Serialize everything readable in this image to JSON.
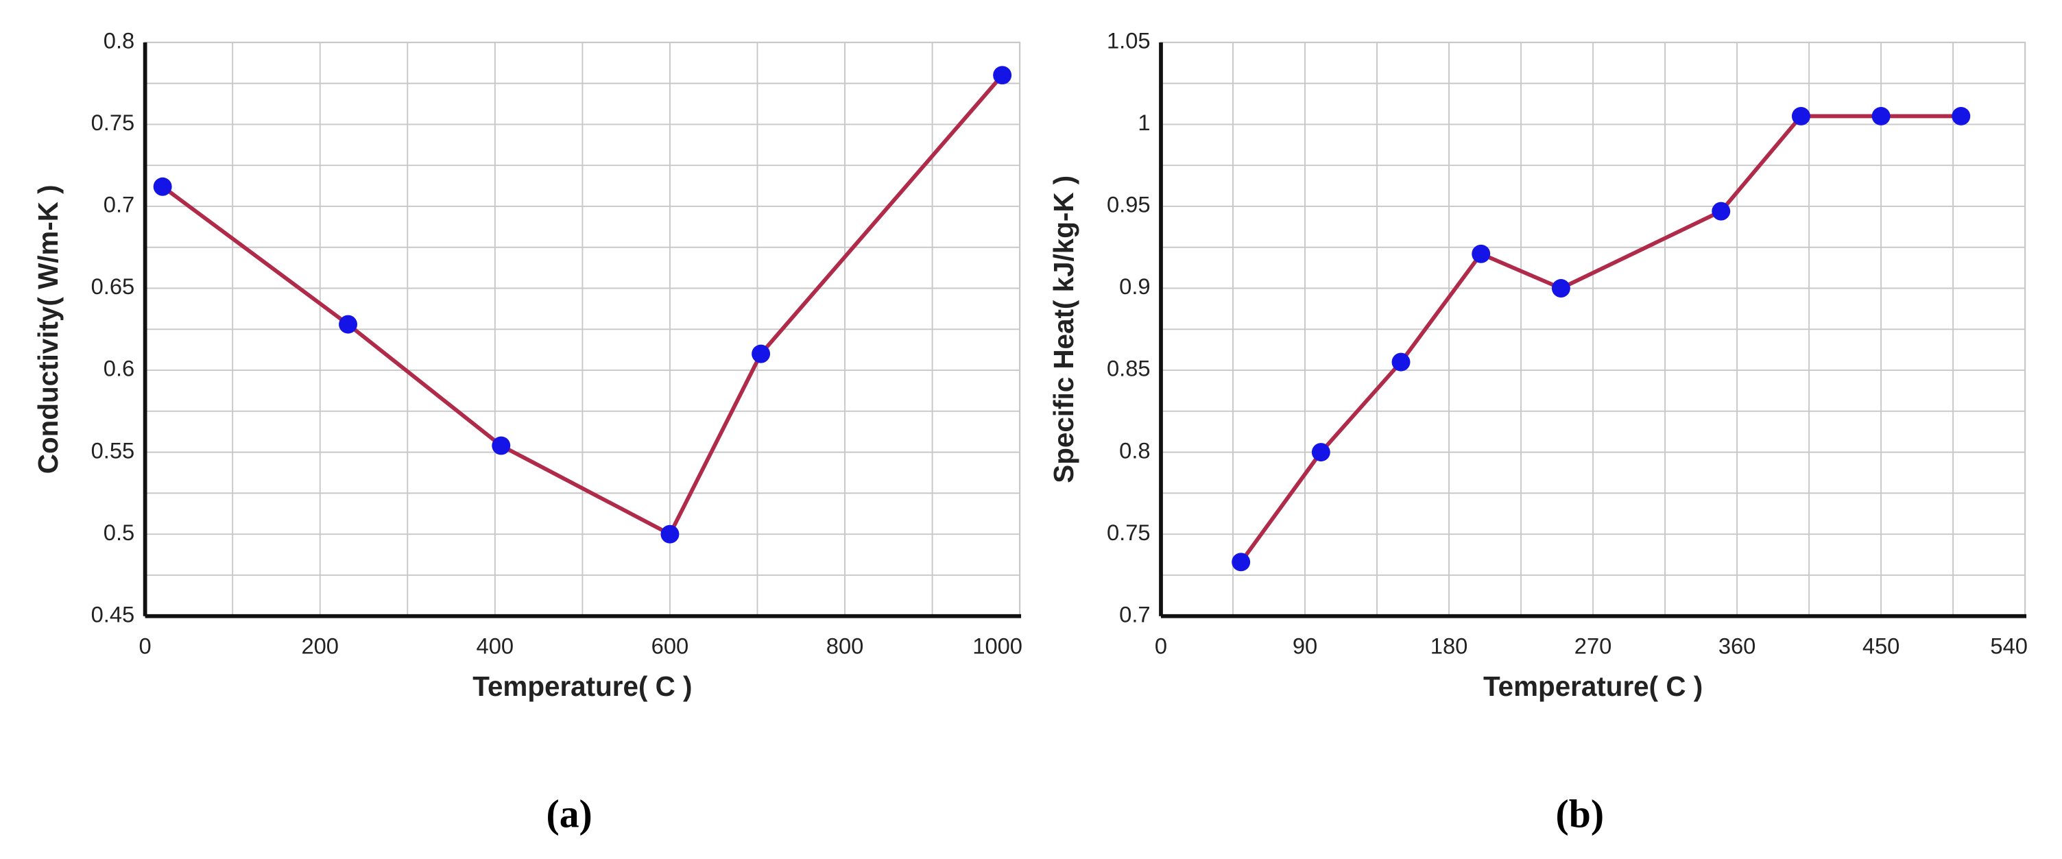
{
  "chart_data": [
    {
      "type": "line",
      "caption": "(a)",
      "x_label": "Temperature( C )",
      "y_label": "Conductivity( W/m-K )",
      "x": [
        20,
        232,
        407,
        600,
        704,
        980
      ],
      "series": [
        {
          "color": "#b02a4a",
          "marker_color": "#1414e6",
          "values": [
            0.712,
            0.628,
            0.554,
            0.5,
            0.61,
            0.78
          ]
        }
      ],
      "xlim": [
        0,
        1000
      ],
      "xticks": [
        0,
        200,
        400,
        600,
        800,
        1000
      ],
      "ylim": [
        0.45,
        0.8
      ],
      "yticks": [
        0.45,
        0.5,
        0.55,
        0.6,
        0.65,
        0.7,
        0.75,
        0.8
      ],
      "grid": true,
      "minor_grid": true
    },
    {
      "type": "line",
      "caption": "(b)",
      "x_label": "Temperature( C )",
      "y_label": "Specific Heat( kJ/kg-K )",
      "x": [
        50,
        100,
        150,
        200,
        250,
        350,
        400,
        450,
        500
      ],
      "series": [
        {
          "color": "#b02a4a",
          "marker_color": "#1414e6",
          "values": [
            0.733,
            0.8,
            0.855,
            0.921,
            0.9,
            0.947,
            1.005,
            1.005,
            1.005
          ]
        }
      ],
      "xlim": [
        0,
        540
      ],
      "xticks": [
        0,
        90,
        180,
        270,
        360,
        450,
        540
      ],
      "ylim": [
        0.7,
        1.05
      ],
      "yticks": [
        0.7,
        0.75,
        0.8,
        0.85,
        0.9,
        0.95,
        1,
        1.05
      ],
      "grid": true,
      "minor_grid": true
    }
  ]
}
